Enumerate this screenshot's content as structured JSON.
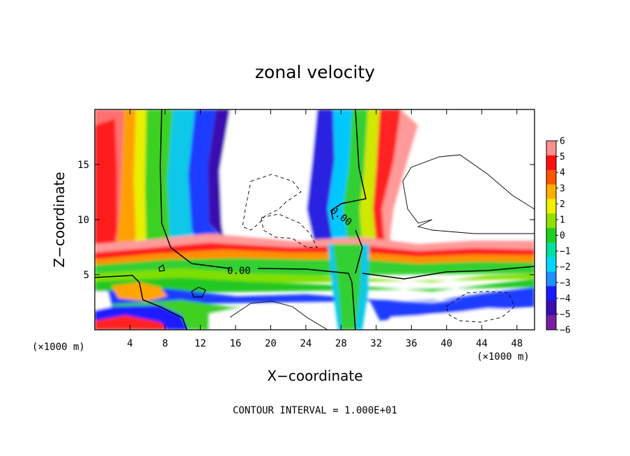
{
  "chart_data": {
    "type": "heatmap",
    "title": "zonal velocity",
    "xlabel": "X−coordinate",
    "ylabel": "Z−coordinate",
    "x_unit_left": "(×1000 m)",
    "x_unit_right": "(×1000 m)",
    "xlim": [
      0,
      50
    ],
    "ylim": [
      0,
      20
    ],
    "xticks": [
      "4",
      "8",
      "12",
      "16",
      "20",
      "24",
      "28",
      "32",
      "36",
      "40",
      "44",
      "48"
    ],
    "yticks": [
      "5",
      "10",
      "15"
    ],
    "colorbar": {
      "range": [
        -6,
        6
      ],
      "ticks": [
        "6",
        "5",
        "4",
        "3",
        "2",
        "1",
        "0",
        "−1",
        "−2",
        "−3",
        "−4",
        "−5",
        "−6"
      ],
      "colors": [
        "#7a1fa2",
        "#3a0fb0",
        "#1a1aff",
        "#1e90ff",
        "#00d8ff",
        "#00e0a0",
        "#20d020",
        "#90e000",
        "#f0f000",
        "#ffb000",
        "#ff5500",
        "#ff1010",
        "#ff9090"
      ]
    },
    "contour_labels": [
      "0.00",
      "0.00"
    ],
    "annotation": "CONTOUR INTERVAL = 1.000E+01",
    "grid": false,
    "legend": "colorbar-right"
  }
}
